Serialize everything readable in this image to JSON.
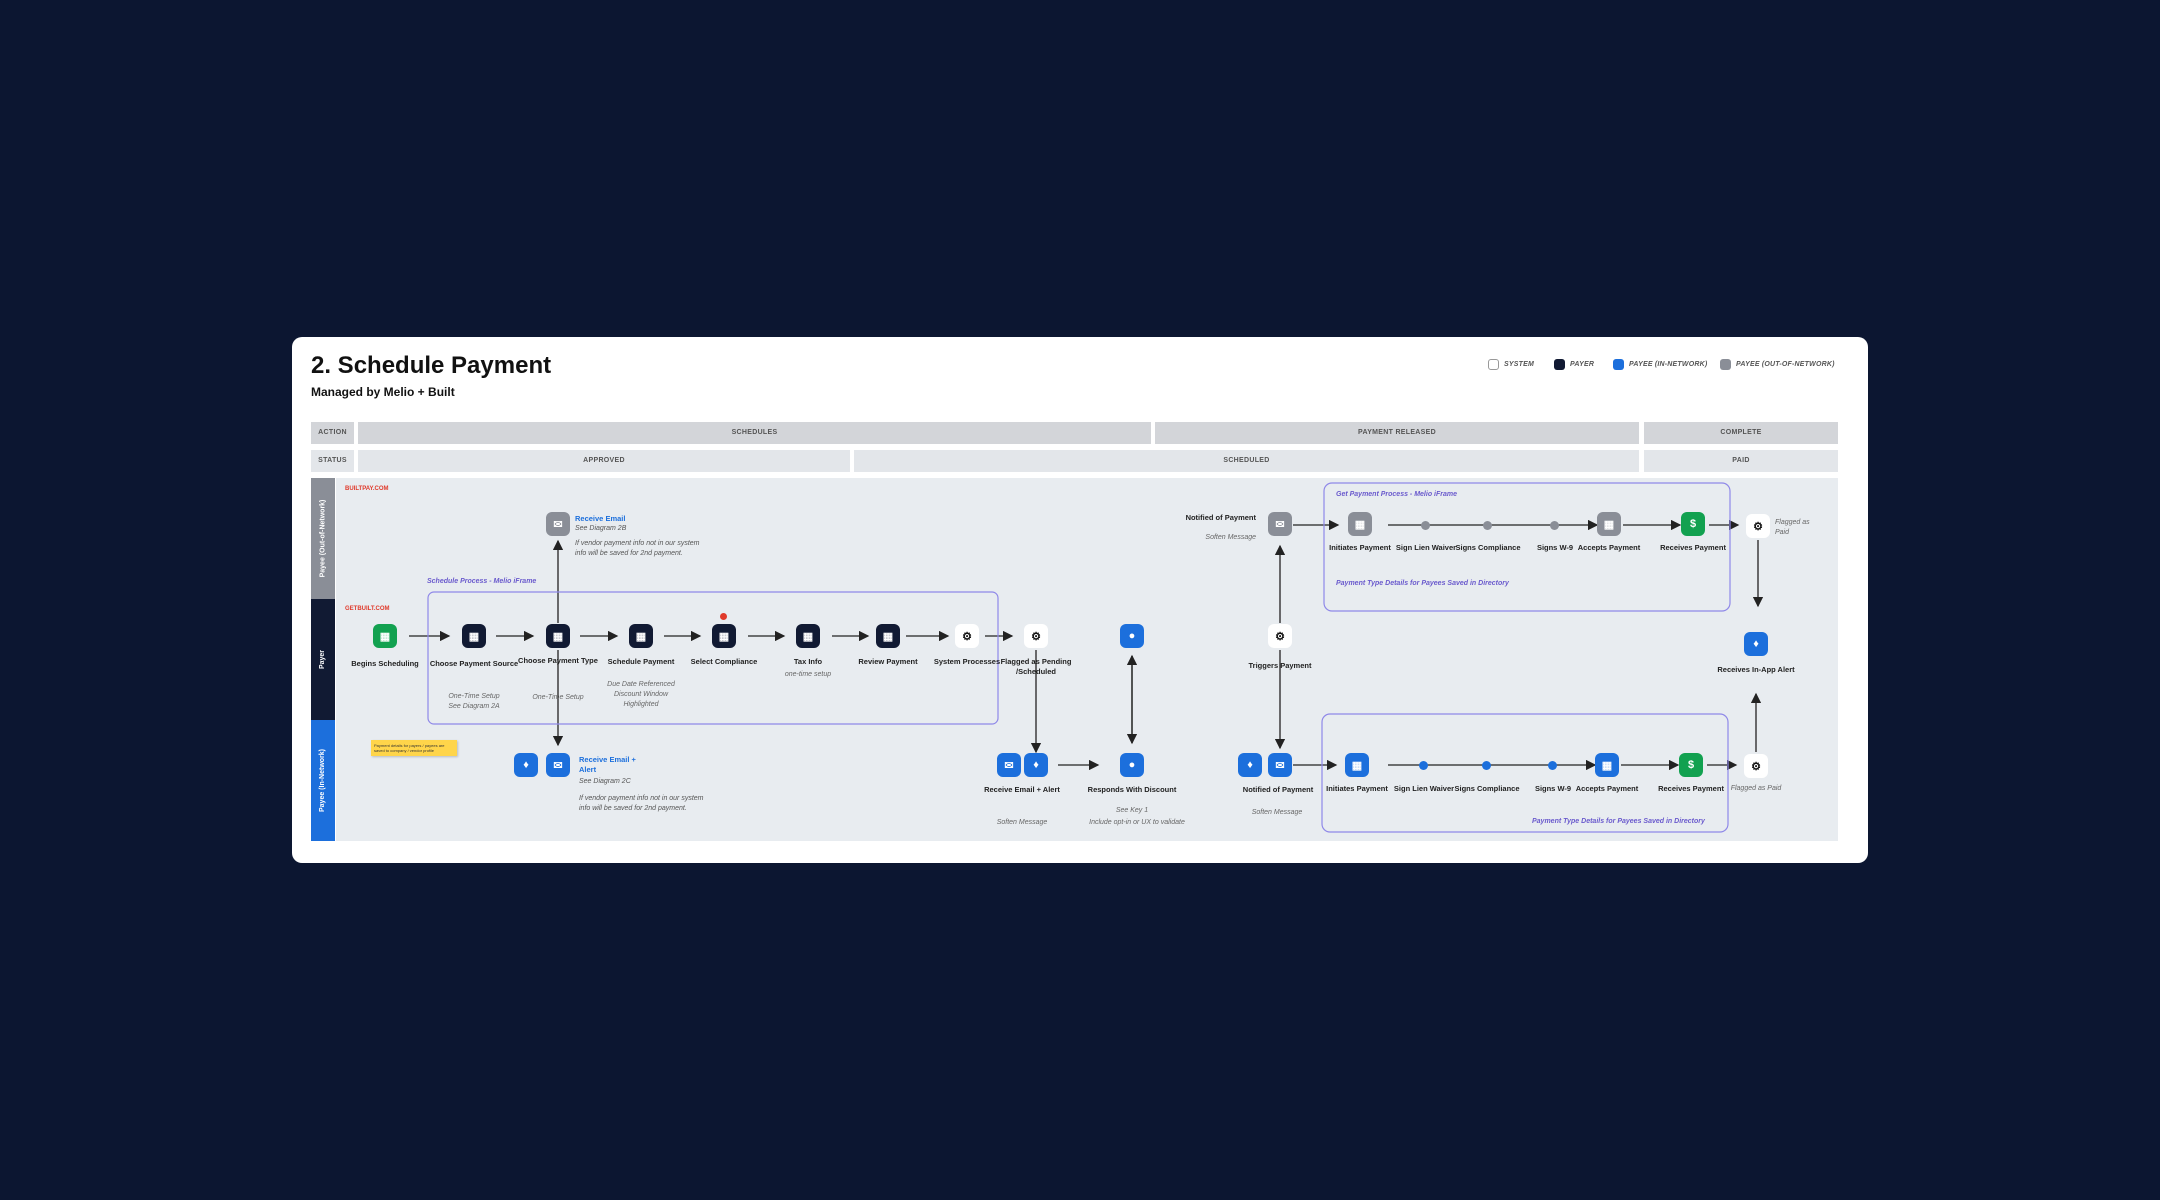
{
  "title": "2. Schedule Payment",
  "subtitle": "Managed by Melio + Built",
  "legend": [
    {
      "label": "SYSTEM",
      "color": "#ffffff"
    },
    {
      "label": "PAYER",
      "color": "#111a33"
    },
    {
      "label": "PAYEE (IN-NETWORK)",
      "color": "#1c6fdc"
    },
    {
      "label": "PAYEE (OUT-OF-NETWORK)",
      "color": "#8a8e97"
    }
  ],
  "rows": {
    "action": {
      "label": "ACTION",
      "cells": [
        "SCHEDULES",
        "PAYMENT RELEASED",
        "COMPLETE"
      ]
    },
    "status": {
      "label": "STATUS",
      "cells": [
        "APPROVED",
        "SCHEDULED",
        "PAID"
      ]
    }
  },
  "lanes": {
    "out_network": {
      "label": "Payee (Out-of-Network)",
      "site": "BUILTPAY.COM"
    },
    "payer": {
      "label": "Payer",
      "site": "GETBUILT.COM"
    },
    "in_network": {
      "label": "Payee (In-Network)"
    }
  },
  "groups": {
    "schedule": "Schedule Process - Melio iFrame",
    "get_payment": "Get Payment Process - Melio iFrame",
    "details_top": "Payment Type Details for Payees Saved in Directory",
    "details_bottom": "Payment Type Details for Payees Saved in Directory"
  },
  "payer_steps": {
    "begins": "Begins Scheduling",
    "source": "Choose Payment Source",
    "source_sub": "One-Time Setup\nSee Diagram 2A",
    "ptype": "Choose Payment Type",
    "ptype_sub": "One-Time Setup",
    "schedule": "Schedule Payment",
    "schedule_sub": "Due Date Referenced\nDiscount Window\nHighlighted",
    "compliance": "Select Compliance",
    "tax": "Tax Info",
    "tax_sub": "one-time setup",
    "review": "Review Payment",
    "system": "System Processes",
    "flagged": "Flagged as Pending /Scheduled",
    "triggers": "Triggers Payment",
    "in_app": "Receives In-App Alert"
  },
  "out_steps": {
    "receive_email": "Receive Email",
    "receive_email_sub": "See Diagram 2B",
    "receive_email_note": "If vendor payment info not in our system\ninfo will be saved for 2nd payment.",
    "notified": "Notified of Payment",
    "notified_sub": "Soften Message",
    "initiates": "Initiates Payment",
    "lien": "Sign Lien Waiver",
    "compliance": "Signs Compliance",
    "w9": "Signs W-9",
    "accepts": "Accepts Payment",
    "receives": "Receives Payment",
    "flagged_paid": "Flagged as Paid"
  },
  "in_steps": {
    "receive_alert": "Receive Email + Alert",
    "receive_alert_sub": "See Diagram 2C",
    "receive_alert_note": "If vendor payment info not in our system\ninfo will be saved for 2nd payment.",
    "receive_alert2": "Receive Email + Alert",
    "receive_alert2_sub": "Soften Message",
    "responds": "Responds With Discount",
    "responds_sub": "See Key 1",
    "responds_note": "Include opt-in or UX to validate",
    "notified": "Notified of Payment",
    "notified_sub": "Soften Message",
    "initiates": "Initiates Payment",
    "lien": "Sign Lien Waiver",
    "compliance": "Signs Compliance",
    "w9": "Signs W-9",
    "accepts": "Accepts Payment",
    "receives": "Receives Payment",
    "flagged_paid": "Flagged as Paid"
  },
  "sticky": "Payment details for payers / payees are saved to company / vendor profile",
  "icons": {
    "doc": "document-icon",
    "mail": "mail-icon",
    "bell": "bell-icon",
    "chat": "chat-icon",
    "gear": "gear-icon",
    "dollar": "dollar-icon"
  }
}
